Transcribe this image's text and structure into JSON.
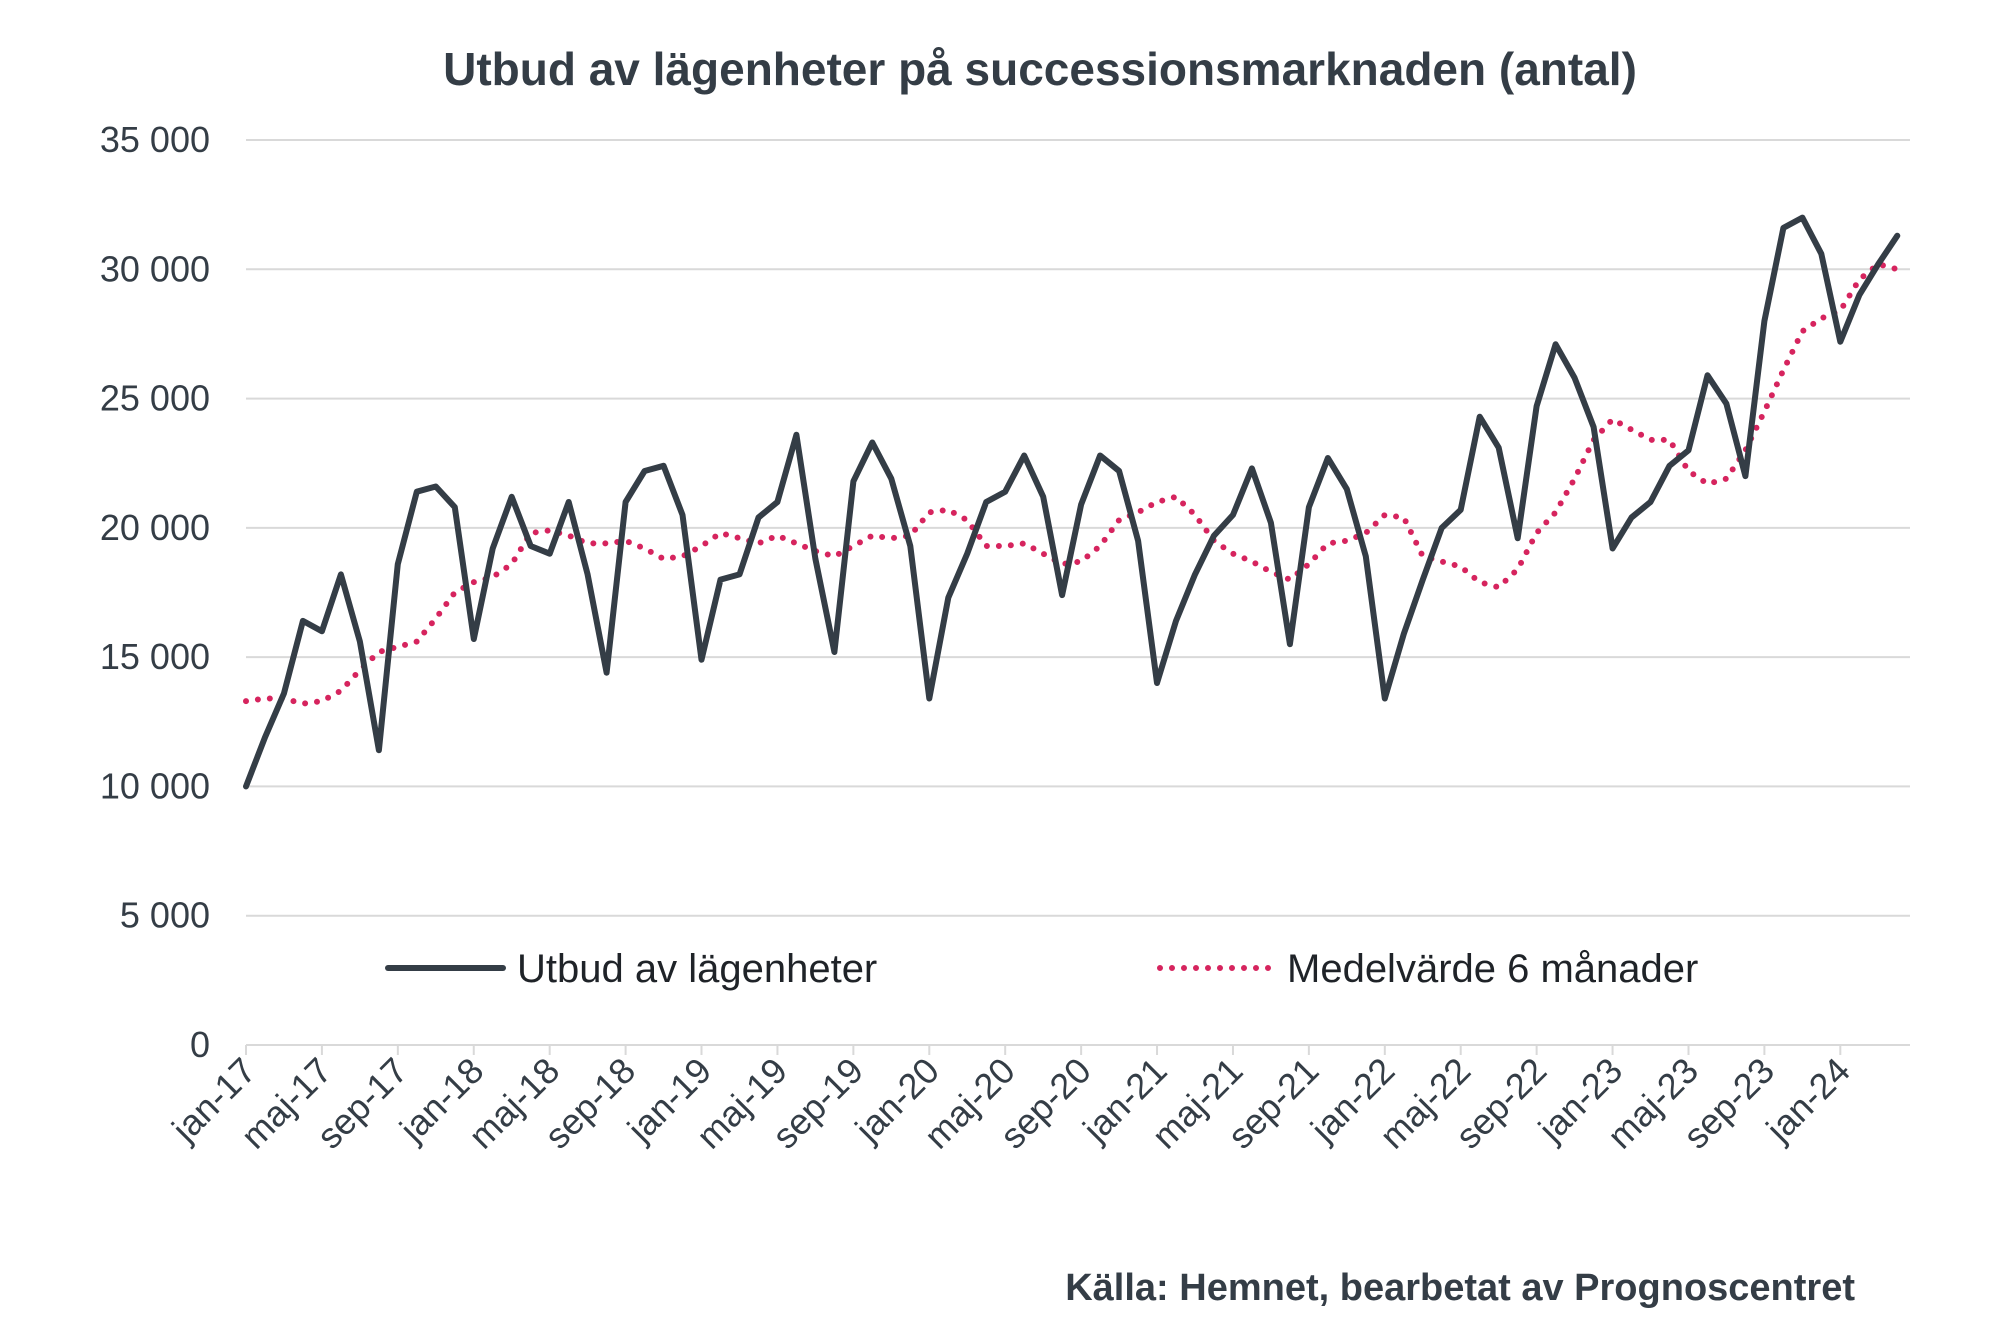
{
  "chart_data": {
    "type": "line",
    "title": "Utbud av lägenheter på successionsmarknaden (antal)",
    "source": "Källa: Hemnet, bearbetat av Prognoscentret",
    "ylim": [
      0,
      35000
    ],
    "y_ticks": [
      "0",
      "5 000",
      "10 000",
      "15 000",
      "20 000",
      "25 000",
      "30 000",
      "35 000"
    ],
    "y_tick_values": [
      0,
      5000,
      10000,
      15000,
      20000,
      25000,
      30000,
      35000
    ],
    "x_tick_labels": [
      "jan-17",
      "maj-17",
      "sep-17",
      "jan-18",
      "maj-18",
      "sep-18",
      "jan-19",
      "maj-19",
      "sep-19",
      "jan-20",
      "maj-20",
      "sep-20",
      "jan-21",
      "maj-21",
      "sep-21",
      "jan-22",
      "maj-22",
      "sep-22",
      "jan-23",
      "maj-23",
      "sep-23",
      "jan-24"
    ],
    "x_start": "jan-17",
    "x_end": "mar-24",
    "grid": "horizontal",
    "legend_position": "bottom",
    "colors": {
      "text": "#343d46",
      "grid": "#d9d9d9",
      "series1": "#343d46",
      "series2": "#d6245e"
    },
    "series": [
      {
        "name": "Utbud av lägenheter",
        "style": "solid",
        "values": [
          10000,
          11900,
          13600,
          16400,
          16000,
          18200,
          15600,
          11400,
          18600,
          21400,
          21600,
          20800,
          15700,
          19200,
          21200,
          19300,
          19000,
          21000,
          18200,
          14400,
          21000,
          22200,
          22400,
          20500,
          14900,
          18000,
          18200,
          20400,
          21000,
          23600,
          18800,
          15200,
          21800,
          23300,
          21900,
          19300,
          13400,
          17300,
          19000,
          21000,
          21400,
          22800,
          21200,
          17400,
          20900,
          22800,
          22200,
          19500,
          14000,
          16400,
          18200,
          19700,
          20500,
          22300,
          20200,
          15500,
          20800,
          22700,
          21500,
          18900,
          13400,
          15900,
          18000,
          20000,
          20700,
          24300,
          23100,
          19600,
          24700,
          27100,
          25800,
          23900,
          19200,
          20400,
          21000,
          22400,
          23000,
          25900,
          24800,
          22000,
          28000,
          31600,
          32000,
          30600,
          27200,
          29000,
          30200,
          31300
        ]
      },
      {
        "name": "Medelvärde 6 månader",
        "style": "dotted",
        "values": [
          13300,
          13400,
          13400,
          13200,
          13300,
          13700,
          14500,
          15200,
          15400,
          15600,
          16500,
          17500,
          17900,
          18100,
          18600,
          19800,
          19900,
          19700,
          19400,
          19400,
          19500,
          19200,
          18800,
          18900,
          19300,
          19800,
          19600,
          19400,
          19700,
          19400,
          19100,
          18900,
          19300,
          19700,
          19600,
          19700,
          20600,
          20700,
          20300,
          19300,
          19300,
          19400,
          19000,
          18600,
          18700,
          19300,
          20300,
          20600,
          21000,
          21200,
          20500,
          19500,
          19000,
          18700,
          18300,
          18000,
          18600,
          19400,
          19500,
          19800,
          20500,
          20400,
          18900,
          18700,
          18500,
          17900,
          17700,
          18400,
          19800,
          20600,
          21900,
          23400,
          24200,
          23800,
          23400,
          23400,
          22200,
          21700,
          21900,
          23000,
          24500,
          26100,
          27600,
          28100,
          28400,
          29600,
          30200,
          30000
        ]
      }
    ]
  }
}
